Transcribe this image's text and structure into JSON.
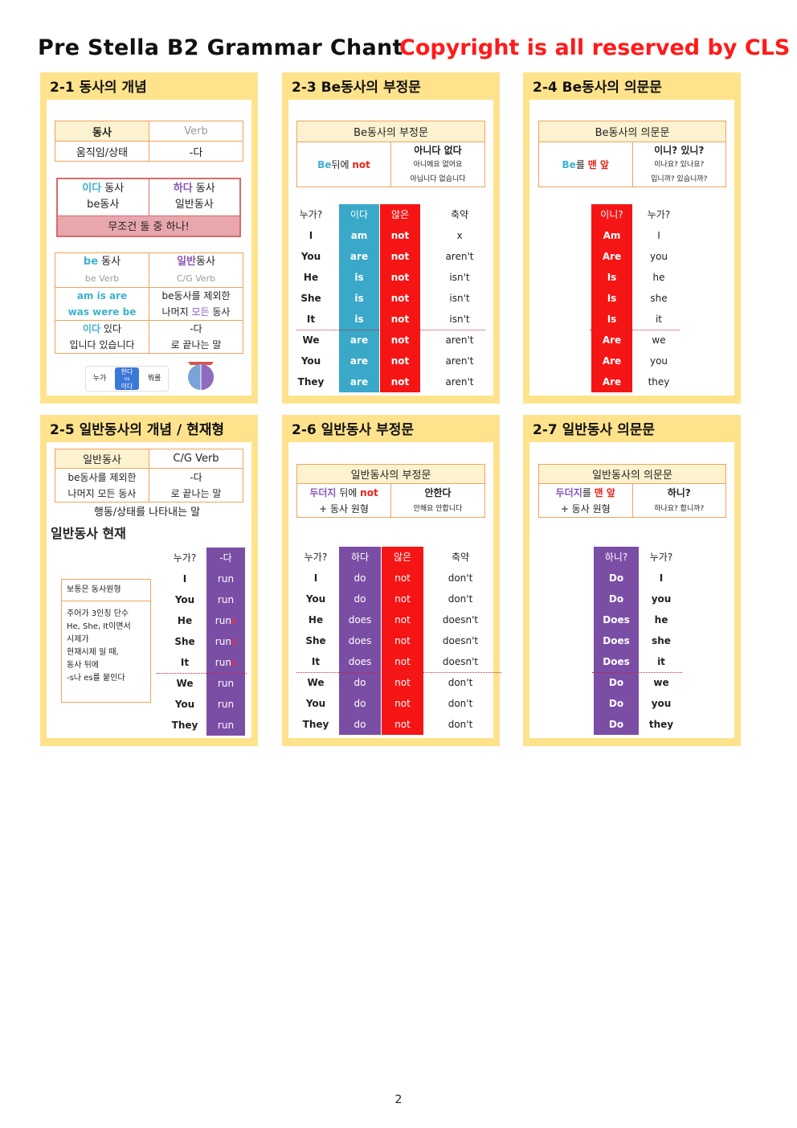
{
  "header": {
    "title": "Pre Stella B2 Grammar Chant",
    "copyright": "Copyright is all reserved by CLS"
  },
  "p21": {
    "title": "2-1 동사의 개념",
    "t1": {
      "a": "동사",
      "b": "Verb",
      "c": "움직임/상태",
      "d": "-다"
    },
    "t2": {
      "a1": "이다",
      "a2": " 동사",
      "a3": "be동사",
      "b1": "하다",
      "b2": " 동사",
      "b3": "일반동사",
      "foot": "무조건 둘 중 하나!"
    },
    "t3": {
      "h1a": "be",
      "h1b": " 동사",
      "h2a": "일반",
      "h2b": "동사",
      "s1": "be Verb",
      "s2": "C/G Verb",
      "r1a": "am  is  are",
      "r1b": "was  were  be",
      "r1c": "be동사를 제외한",
      "r1d1": "나머지 ",
      "r1d2": "모든",
      "r1d3": " 동사",
      "r2a1": "이다",
      "r2a2": " 있다",
      "r2b": "입니다 있습니다",
      "r2c": "-다",
      "r2d": "로 끝나는 말"
    },
    "mini": {
      "who": "누가",
      "hada": "한다",
      "vs": "vs",
      "ida": "이다",
      "what": "뭐를"
    },
    "circle": {
      "top": "동사"
    }
  },
  "p23": {
    "title": "2-3 Be동사의 부정문",
    "box": {
      "head": "Be동사의 부정문",
      "l1": "Be",
      "l2": "뒤에 ",
      "l3": "not",
      "r1": "아니다 없다",
      "r2": "아니에요 없어요",
      "r3": "아닙니다 없습니다"
    },
    "heads": [
      "누가?",
      "이다",
      "않은",
      "축약"
    ],
    "rows": [
      [
        "I",
        "am",
        "not",
        "x"
      ],
      [
        "You",
        "are",
        "not",
        "aren't"
      ],
      [
        "He",
        "is",
        "not",
        "isn't"
      ],
      [
        "She",
        "is",
        "not",
        "isn't"
      ],
      [
        "It",
        "is",
        "not",
        "isn't"
      ],
      [
        "We",
        "are",
        "not",
        "aren't"
      ],
      [
        "You",
        "are",
        "not",
        "aren't"
      ],
      [
        "They",
        "are",
        "not",
        "aren't"
      ]
    ]
  },
  "p24": {
    "title": "2-4 Be동사의 의문문",
    "box": {
      "head": "Be동사의 의문문",
      "l1": "Be",
      "l2": "를 ",
      "l3": "맨 앞",
      "r1": "이니? 있니?",
      "r2": "이나요? 있나요?",
      "r3": "입니까? 있습니까?"
    },
    "heads": [
      "이니?",
      "누가?"
    ],
    "rows": [
      [
        "Am",
        "I"
      ],
      [
        "Are",
        "you"
      ],
      [
        "Is",
        "he"
      ],
      [
        "Is",
        "she"
      ],
      [
        "Is",
        "it"
      ],
      [
        "Are",
        "we"
      ],
      [
        "Are",
        "you"
      ],
      [
        "Are",
        "they"
      ]
    ]
  },
  "p25": {
    "title": "2-5 일반동사의 개념 / 현재형",
    "box": {
      "a": "일반동사",
      "b": "C/G Verb",
      "c1": "be동사를 제외한",
      "c2": "나머지 모든 동사",
      "d1": "-다",
      "d2": "로 끝나는 말"
    },
    "desc": "행동/상태를 나타내는 말",
    "sub": "일반동사 현재",
    "note": {
      "t": "보통은 동사원형",
      "l1": "주어가 3인칭 단수",
      "l2": "He, She, It이면서",
      "l3": "시제가",
      "l4": "  현재시제 일 때,",
      "l5": "동사 뒤에",
      "l6": " -s나 es를 붙인다"
    },
    "heads": [
      "누가?",
      "-다"
    ],
    "rows": [
      [
        "I",
        "run",
        ""
      ],
      [
        "You",
        "run",
        ""
      ],
      [
        "He",
        "run",
        "s"
      ],
      [
        "She",
        "run",
        "s"
      ],
      [
        "It",
        "run",
        "s"
      ],
      [
        "We",
        "run",
        ""
      ],
      [
        "You",
        "run",
        ""
      ],
      [
        "They",
        "run",
        ""
      ]
    ]
  },
  "p26": {
    "title": "2-6 일반동사 부정문",
    "box": {
      "head": "일반동사의 부정문",
      "l1": "두더지",
      "l2": " 뒤에 ",
      "l3": "not",
      "l4": "+ 동사 원형",
      "r1": "안한다",
      "r2": "안해요 안합니다"
    },
    "heads": [
      "누가?",
      "하다",
      "않은",
      "축약"
    ],
    "rows": [
      [
        "I",
        "do",
        "not",
        "don't"
      ],
      [
        "You",
        "do",
        "not",
        "don't"
      ],
      [
        "He",
        "does",
        "not",
        "doesn't"
      ],
      [
        "She",
        "does",
        "not",
        "doesn't"
      ],
      [
        "It",
        "does",
        "not",
        "doesn't"
      ],
      [
        "We",
        "do",
        "not",
        "don't"
      ],
      [
        "You",
        "do",
        "not",
        "don't"
      ],
      [
        "They",
        "do",
        "not",
        "don't"
      ]
    ]
  },
  "p27": {
    "title": "2-7 일반동사 의문문",
    "box": {
      "head": "일반동사의 의문문",
      "l1": "두더지",
      "l2": "를 ",
      "l3": "맨 앞",
      "l4": "+ 동사 원형",
      "r1": "하니?",
      "r2": "하나요? 합니까?"
    },
    "heads": [
      "하니?",
      "누가?"
    ],
    "rows": [
      [
        "Do",
        "I"
      ],
      [
        "Do",
        "you"
      ],
      [
        "Does",
        "he"
      ],
      [
        "Does",
        "she"
      ],
      [
        "Does",
        "it"
      ],
      [
        "Do",
        "we"
      ],
      [
        "Do",
        "you"
      ],
      [
        "Do",
        "they"
      ]
    ]
  },
  "page": "2"
}
